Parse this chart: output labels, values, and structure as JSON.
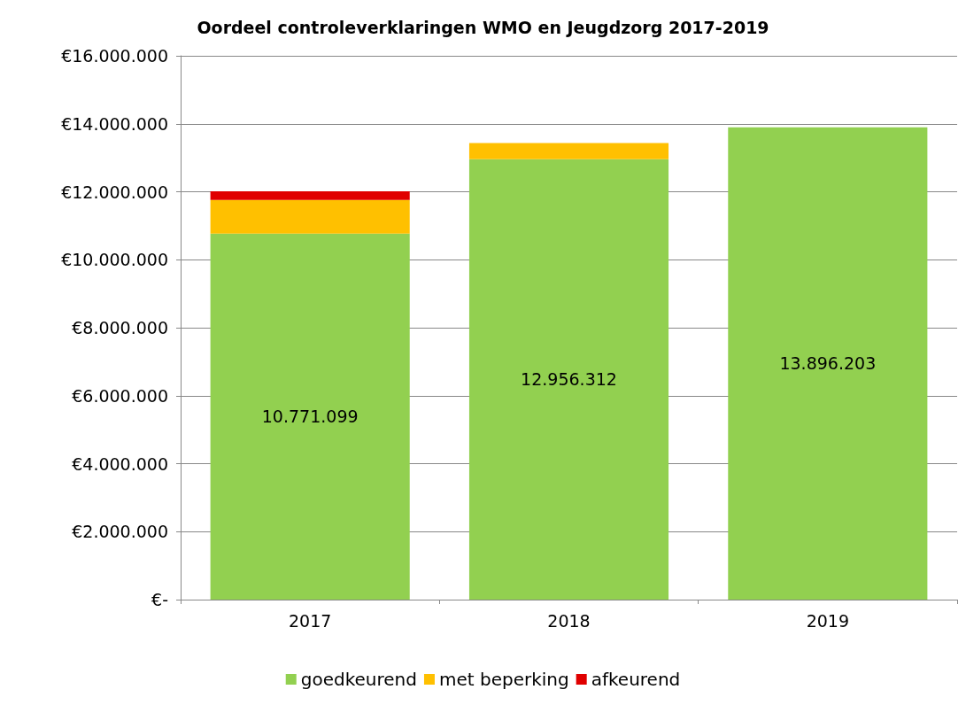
{
  "chart_data": {
    "type": "bar",
    "title": "Oordeel controleverklaringen WMO en Jeugdzorg 2017-2019",
    "categories": [
      "2017",
      "2018",
      "2019"
    ],
    "stacked": true,
    "series": [
      {
        "name": "goedkeurend",
        "color": "#92d050",
        "values": [
          10771099,
          12956312,
          13896203
        ],
        "value_labels": [
          "10.771.099",
          "12.956.312",
          "13.896.203"
        ]
      },
      {
        "name": "met beperking",
        "color": "#ffc000",
        "values": [
          990000,
          480000,
          0
        ]
      },
      {
        "name": "afkeurend",
        "color": "#e00000",
        "values": [
          250000,
          0,
          0
        ]
      }
    ],
    "ylim": [
      0,
      16000000
    ],
    "yticks": [
      {
        "value": 0,
        "label": "€-"
      },
      {
        "value": 2000000,
        "label": "€2.000.000"
      },
      {
        "value": 4000000,
        "label": "€4.000.000"
      },
      {
        "value": 6000000,
        "label": "€6.000.000"
      },
      {
        "value": 8000000,
        "label": "€8.000.000"
      },
      {
        "value": 10000000,
        "label": "€10.000.000"
      },
      {
        "value": 12000000,
        "label": "€12.000.000"
      },
      {
        "value": 14000000,
        "label": "€14.000.000"
      },
      {
        "value": 16000000,
        "label": "€16.000.000"
      }
    ],
    "grid": "y",
    "legend": "bottom"
  }
}
